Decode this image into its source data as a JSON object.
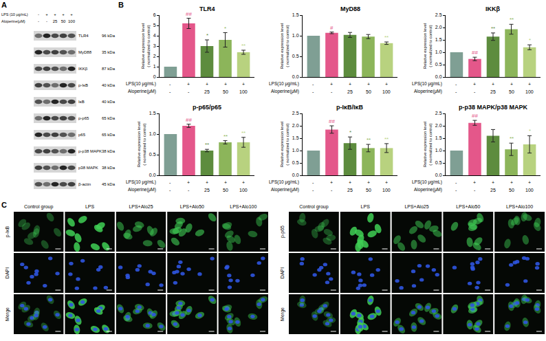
{
  "panel_labels": [
    "A",
    "B",
    "C"
  ],
  "panel_A": {
    "type": "western_blot",
    "conditions": [
      {
        "label": "LPS (10 μg/mL)",
        "values": [
          "-",
          "+",
          "+",
          "+",
          "+"
        ]
      },
      {
        "label": "Aloperine(μM)",
        "values": [
          "-",
          "-",
          "25",
          "50",
          "100"
        ]
      }
    ],
    "bands": [
      {
        "label": "TLR4",
        "size": "96 kDa"
      },
      {
        "label": "MyD88",
        "size": "35 kDa"
      },
      {
        "label": "IKKβ",
        "size": "87 kDa"
      },
      {
        "label": "p-IκB",
        "size": "40 kDa"
      },
      {
        "label": "IκB",
        "size": "40 kDa"
      },
      {
        "label": "p-p65",
        "size": "65 kDa"
      },
      {
        "label": "p65",
        "size": "65 kDa"
      },
      {
        "label": "p-p38 MAPK",
        "size": "38 kDa"
      },
      {
        "label": "p38 MAPK",
        "size": "38 kDa"
      },
      {
        "label": "β-actin",
        "size": "45 kDa"
      }
    ]
  },
  "chart_data": [
    {
      "type": "bar",
      "title": "TLR4",
      "y_label": [
        "Relative expression level",
        "( normalized to control)"
      ],
      "x_rows": [
        {
          "label": "LPS(10 μg/mL)",
          "values": [
            "-",
            "+",
            "+",
            "+",
            "+"
          ]
        },
        {
          "label": "Aloperine(μM)",
          "values": [
            "-",
            "-",
            "25",
            "50",
            "100"
          ]
        }
      ],
      "values": [
        1,
        5.2,
        3.0,
        3.6,
        2.4
      ],
      "errors": [
        null,
        0.5,
        0.6,
        0.7,
        0.2
      ],
      "significance": [
        null,
        "##",
        "*",
        "*",
        "**"
      ],
      "colors": [
        "#7f9f94",
        "#e4578a",
        "#5d8c3e",
        "#8cb55a",
        "#b8d27f"
      ],
      "ylim": [
        0,
        6
      ],
      "yticks": [
        0,
        1,
        2,
        3,
        4,
        5,
        6
      ],
      "grid": false,
      "tick_labels": "y"
    },
    {
      "type": "bar",
      "title": "MyD88",
      "y_label": [
        "Relative expression level",
        "( normalized to control)"
      ],
      "x_rows": [
        {
          "label": "LPS(10 μg/mL)",
          "values": [
            "-",
            "+",
            "+",
            "+",
            "+"
          ]
        },
        {
          "label": "Aloperine(μM)",
          "values": [
            "-",
            "-",
            "25",
            "50",
            "100"
          ]
        }
      ],
      "values": [
        1,
        1.07,
        1.02,
        0.98,
        0.82
      ],
      "errors": [
        null,
        0.02,
        0.06,
        0.05,
        0.03
      ],
      "significance": [
        null,
        "#",
        null,
        null,
        "**"
      ],
      "colors": [
        "#7f9f94",
        "#e4578a",
        "#5d8c3e",
        "#8cb55a",
        "#b8d27f"
      ],
      "ylim": [
        0,
        1.5
      ],
      "yticks": [
        {
          "value": 0,
          "label": "0.0"
        },
        0.5,
        {
          "value": 1,
          "label": "1.0"
        },
        1.5
      ],
      "grid": false,
      "tick_labels": "y"
    },
    {
      "type": "bar",
      "title": "IKKβ",
      "y_label": [
        "Relative expression level",
        "( normalized to control)"
      ],
      "x_rows": [
        {
          "label": "LPS(10 μg/mL)",
          "values": [
            "-",
            "+",
            "+",
            "+",
            "+"
          ]
        },
        {
          "label": "Aloperine(μM)",
          "values": [
            "-",
            "-",
            "25",
            "50",
            "100"
          ]
        }
      ],
      "values": [
        1,
        0.73,
        1.63,
        1.93,
        1.2
      ],
      "errors": [
        null,
        0.07,
        0.15,
        0.2,
        0.1
      ],
      "significance": [
        null,
        "##",
        "**",
        "**",
        "*"
      ],
      "colors": [
        "#7f9f94",
        "#e4578a",
        "#5d8c3e",
        "#8cb55a",
        "#b8d27f"
      ],
      "ylim": [
        0,
        2.5
      ],
      "yticks": [
        {
          "value": 0,
          "label": "0.0"
        },
        0.5,
        {
          "value": 1,
          "label": "1.0"
        },
        1.5,
        {
          "value": 2,
          "label": "2.0"
        },
        2.5
      ],
      "grid": false,
      "tick_labels": "y"
    },
    {
      "type": "bar",
      "title": "p-p65/p65",
      "y_label": [
        "Relative expression level",
        "( normalized to control)"
      ],
      "x_rows": [
        {
          "label": "LPS(10 μg/mL)",
          "values": [
            "-",
            "+",
            "+",
            "+",
            "+"
          ]
        },
        {
          "label": "Aloperine(μM)",
          "values": [
            "-",
            "-",
            "25",
            "50",
            "100"
          ]
        }
      ],
      "values": [
        1,
        1.2,
        0.6,
        0.8,
        0.8
      ],
      "errors": [
        null,
        0.04,
        0.03,
        0.04,
        0.12
      ],
      "significance": [
        null,
        "##",
        "**",
        "**",
        "**"
      ],
      "colors": [
        "#7f9f94",
        "#e4578a",
        "#5d8c3e",
        "#8cb55a",
        "#b8d27f"
      ],
      "ylim": [
        0,
        1.5
      ],
      "yticks": [
        {
          "value": 0,
          "label": "0.0"
        },
        0.5,
        {
          "value": 1,
          "label": "1.0"
        },
        1.5
      ],
      "grid": false,
      "tick_labels": "y"
    },
    {
      "type": "bar",
      "title": "p-IκB/IκB",
      "y_label": [
        "Relative expression level",
        "( normalized to control)"
      ],
      "x_rows": [
        {
          "label": "LPS(10 μg/mL)",
          "values": [
            "-",
            "+",
            "+",
            "+",
            "+"
          ]
        },
        {
          "label": "Aloperine(μM)",
          "values": [
            "-",
            "-",
            "25",
            "50",
            "100"
          ]
        }
      ],
      "values": [
        1,
        1.85,
        1.3,
        1.1,
        1.1
      ],
      "errors": [
        null,
        0.15,
        0.25,
        0.15,
        0.18
      ],
      "significance": [
        null,
        "##",
        "*",
        "**",
        "**"
      ],
      "colors": [
        "#7f9f94",
        "#e4578a",
        "#5d8c3e",
        "#8cb55a",
        "#b8d27f"
      ],
      "ylim": [
        0,
        2.5
      ],
      "yticks": [
        {
          "value": 0,
          "label": "0.0"
        },
        0.5,
        {
          "value": 1,
          "label": "1.0"
        },
        1.5,
        {
          "value": 2,
          "label": "2.0"
        },
        2.5
      ],
      "grid": false,
      "tick_labels": "y"
    },
    {
      "type": "bar",
      "title": "p-p38 MAPK/p38 MAPK",
      "y_label": [
        "Relative expression level",
        "( normalized to control)"
      ],
      "x_rows": [
        {
          "label": "LPS(10 μg/mL)",
          "values": [
            "-",
            "+",
            "+",
            "+",
            "+"
          ]
        },
        {
          "label": "Aloperine(μM)",
          "values": [
            "-",
            "-",
            "25",
            "50",
            "100"
          ]
        }
      ],
      "values": [
        1,
        2.12,
        1.6,
        1.05,
        1.25
      ],
      "errors": [
        null,
        0.1,
        0.25,
        0.25,
        0.35
      ],
      "significance": [
        null,
        "##",
        null,
        "**",
        "*"
      ],
      "colors": [
        "#7f9f94",
        "#e4578a",
        "#5d8c3e",
        "#8cb55a",
        "#b8d27f"
      ],
      "ylim": [
        0,
        2.5
      ],
      "yticks": [
        {
          "value": 0,
          "label": "0.0"
        },
        0.5,
        {
          "value": 1,
          "label": "1.0"
        },
        1.5,
        {
          "value": 2,
          "label": "2.0"
        },
        2.5
      ],
      "grid": false,
      "tick_labels": "y"
    }
  ],
  "panel_C": {
    "type": "image_grid",
    "groups": [
      {
        "rows": [
          "p-IκB",
          "DAPI",
          "Merge"
        ],
        "columns": [
          "Control group",
          "LPS",
          "LPS+Alo25",
          "LPS+Alo50",
          "LPS+Alo100"
        ]
      },
      {
        "rows": [
          "p-p65",
          "DAPI",
          "Merge"
        ],
        "columns": [
          "Control group",
          "LPS",
          "LPS+Alo25",
          "LPS+Alo50",
          "LPS+Alo100"
        ]
      }
    ]
  }
}
